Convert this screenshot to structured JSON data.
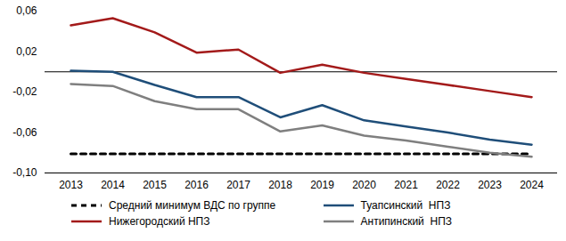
{
  "chart_data": {
    "type": "line",
    "categories": [
      "2013",
      "2014",
      "2015",
      "2016",
      "2017",
      "2018",
      "2019",
      "2020",
      "2021",
      "2022",
      "2023",
      "2024"
    ],
    "series": [
      {
        "name": "Средний минимум ВДС по группе",
        "color": "#000000",
        "line_style": "dashed",
        "values": [
          -0.081,
          -0.081,
          -0.081,
          -0.081,
          -0.081,
          -0.081,
          -0.081,
          -0.081,
          -0.081,
          -0.081,
          -0.081,
          -0.081
        ]
      },
      {
        "name": "Туапсинский  НПЗ",
        "color": "#1f4e79",
        "line_style": "solid",
        "values": [
          0.001,
          0.0,
          -0.013,
          -0.025,
          -0.025,
          -0.045,
          -0.033,
          -0.048,
          -0.054,
          -0.06,
          -0.067,
          -0.072
        ]
      },
      {
        "name": "Нижегородский НПЗ",
        "color": "#a31a1a",
        "line_style": "solid",
        "values": [
          0.046,
          0.053,
          0.039,
          0.019,
          0.022,
          -0.001,
          0.007,
          -0.001,
          -0.007,
          -0.013,
          -0.019,
          -0.025
        ]
      },
      {
        "name": "Антипинский  НПЗ",
        "color": "#7f7f7f",
        "line_style": "solid",
        "values": [
          -0.012,
          -0.014,
          -0.029,
          -0.037,
          -0.037,
          -0.059,
          -0.053,
          -0.063,
          -0.068,
          -0.074,
          -0.08,
          -0.084
        ]
      }
    ],
    "ylim": [
      -0.1,
      0.06
    ],
    "yticks": [
      {
        "value": 0.06,
        "label": "0,06"
      },
      {
        "value": 0.02,
        "label": "0,02"
      },
      {
        "value": -0.02,
        "label": "-0,02"
      },
      {
        "value": -0.06,
        "label": "-0,06"
      },
      {
        "value": -0.1,
        "label": "-0,10"
      }
    ],
    "grid": false,
    "legend": "bottom"
  }
}
